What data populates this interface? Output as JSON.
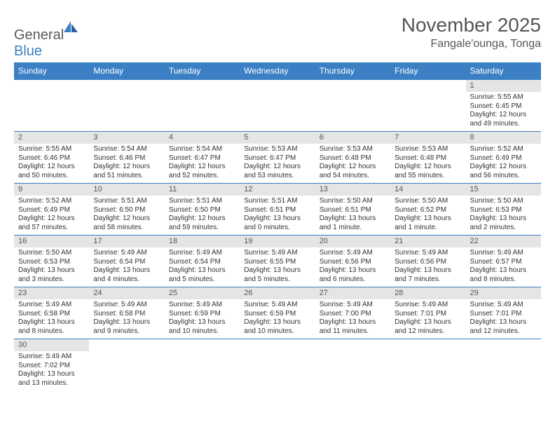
{
  "logo": {
    "text1": "General",
    "text2": "Blue"
  },
  "title": "November 2025",
  "location": "Fangale'ounga, Tonga",
  "colors": {
    "header_bg": "#3b7fc4",
    "header_fg": "#ffffff",
    "cell_border": "#3b7fc4",
    "daynum_bg": "#e5e5e5",
    "text": "#555555"
  },
  "dayHeaders": [
    "Sunday",
    "Monday",
    "Tuesday",
    "Wednesday",
    "Thursday",
    "Friday",
    "Saturday"
  ],
  "weeks": [
    [
      null,
      null,
      null,
      null,
      null,
      null,
      {
        "n": "1",
        "sunrise": "5:55 AM",
        "sunset": "6:45 PM",
        "daylight": "12 hours and 49 minutes."
      }
    ],
    [
      {
        "n": "2",
        "sunrise": "5:55 AM",
        "sunset": "6:46 PM",
        "daylight": "12 hours and 50 minutes."
      },
      {
        "n": "3",
        "sunrise": "5:54 AM",
        "sunset": "6:46 PM",
        "daylight": "12 hours and 51 minutes."
      },
      {
        "n": "4",
        "sunrise": "5:54 AM",
        "sunset": "6:47 PM",
        "daylight": "12 hours and 52 minutes."
      },
      {
        "n": "5",
        "sunrise": "5:53 AM",
        "sunset": "6:47 PM",
        "daylight": "12 hours and 53 minutes."
      },
      {
        "n": "6",
        "sunrise": "5:53 AM",
        "sunset": "6:48 PM",
        "daylight": "12 hours and 54 minutes."
      },
      {
        "n": "7",
        "sunrise": "5:53 AM",
        "sunset": "6:48 PM",
        "daylight": "12 hours and 55 minutes."
      },
      {
        "n": "8",
        "sunrise": "5:52 AM",
        "sunset": "6:49 PM",
        "daylight": "12 hours and 56 minutes."
      }
    ],
    [
      {
        "n": "9",
        "sunrise": "5:52 AM",
        "sunset": "6:49 PM",
        "daylight": "12 hours and 57 minutes."
      },
      {
        "n": "10",
        "sunrise": "5:51 AM",
        "sunset": "6:50 PM",
        "daylight": "12 hours and 58 minutes."
      },
      {
        "n": "11",
        "sunrise": "5:51 AM",
        "sunset": "6:50 PM",
        "daylight": "12 hours and 59 minutes."
      },
      {
        "n": "12",
        "sunrise": "5:51 AM",
        "sunset": "6:51 PM",
        "daylight": "13 hours and 0 minutes."
      },
      {
        "n": "13",
        "sunrise": "5:50 AM",
        "sunset": "6:51 PM",
        "daylight": "13 hours and 1 minute."
      },
      {
        "n": "14",
        "sunrise": "5:50 AM",
        "sunset": "6:52 PM",
        "daylight": "13 hours and 1 minute."
      },
      {
        "n": "15",
        "sunrise": "5:50 AM",
        "sunset": "6:53 PM",
        "daylight": "13 hours and 2 minutes."
      }
    ],
    [
      {
        "n": "16",
        "sunrise": "5:50 AM",
        "sunset": "6:53 PM",
        "daylight": "13 hours and 3 minutes."
      },
      {
        "n": "17",
        "sunrise": "5:49 AM",
        "sunset": "6:54 PM",
        "daylight": "13 hours and 4 minutes."
      },
      {
        "n": "18",
        "sunrise": "5:49 AM",
        "sunset": "6:54 PM",
        "daylight": "13 hours and 5 minutes."
      },
      {
        "n": "19",
        "sunrise": "5:49 AM",
        "sunset": "6:55 PM",
        "daylight": "13 hours and 5 minutes."
      },
      {
        "n": "20",
        "sunrise": "5:49 AM",
        "sunset": "6:56 PM",
        "daylight": "13 hours and 6 minutes."
      },
      {
        "n": "21",
        "sunrise": "5:49 AM",
        "sunset": "6:56 PM",
        "daylight": "13 hours and 7 minutes."
      },
      {
        "n": "22",
        "sunrise": "5:49 AM",
        "sunset": "6:57 PM",
        "daylight": "13 hours and 8 minutes."
      }
    ],
    [
      {
        "n": "23",
        "sunrise": "5:49 AM",
        "sunset": "6:58 PM",
        "daylight": "13 hours and 8 minutes."
      },
      {
        "n": "24",
        "sunrise": "5:49 AM",
        "sunset": "6:58 PM",
        "daylight": "13 hours and 9 minutes."
      },
      {
        "n": "25",
        "sunrise": "5:49 AM",
        "sunset": "6:59 PM",
        "daylight": "13 hours and 10 minutes."
      },
      {
        "n": "26",
        "sunrise": "5:49 AM",
        "sunset": "6:59 PM",
        "daylight": "13 hours and 10 minutes."
      },
      {
        "n": "27",
        "sunrise": "5:49 AM",
        "sunset": "7:00 PM",
        "daylight": "13 hours and 11 minutes."
      },
      {
        "n": "28",
        "sunrise": "5:49 AM",
        "sunset": "7:01 PM",
        "daylight": "13 hours and 12 minutes."
      },
      {
        "n": "29",
        "sunrise": "5:49 AM",
        "sunset": "7:01 PM",
        "daylight": "13 hours and 12 minutes."
      }
    ],
    [
      {
        "n": "30",
        "sunrise": "5:49 AM",
        "sunset": "7:02 PM",
        "daylight": "13 hours and 13 minutes."
      },
      null,
      null,
      null,
      null,
      null,
      null
    ]
  ],
  "labels": {
    "sunrise": "Sunrise:",
    "sunset": "Sunset:",
    "daylight": "Daylight:"
  }
}
